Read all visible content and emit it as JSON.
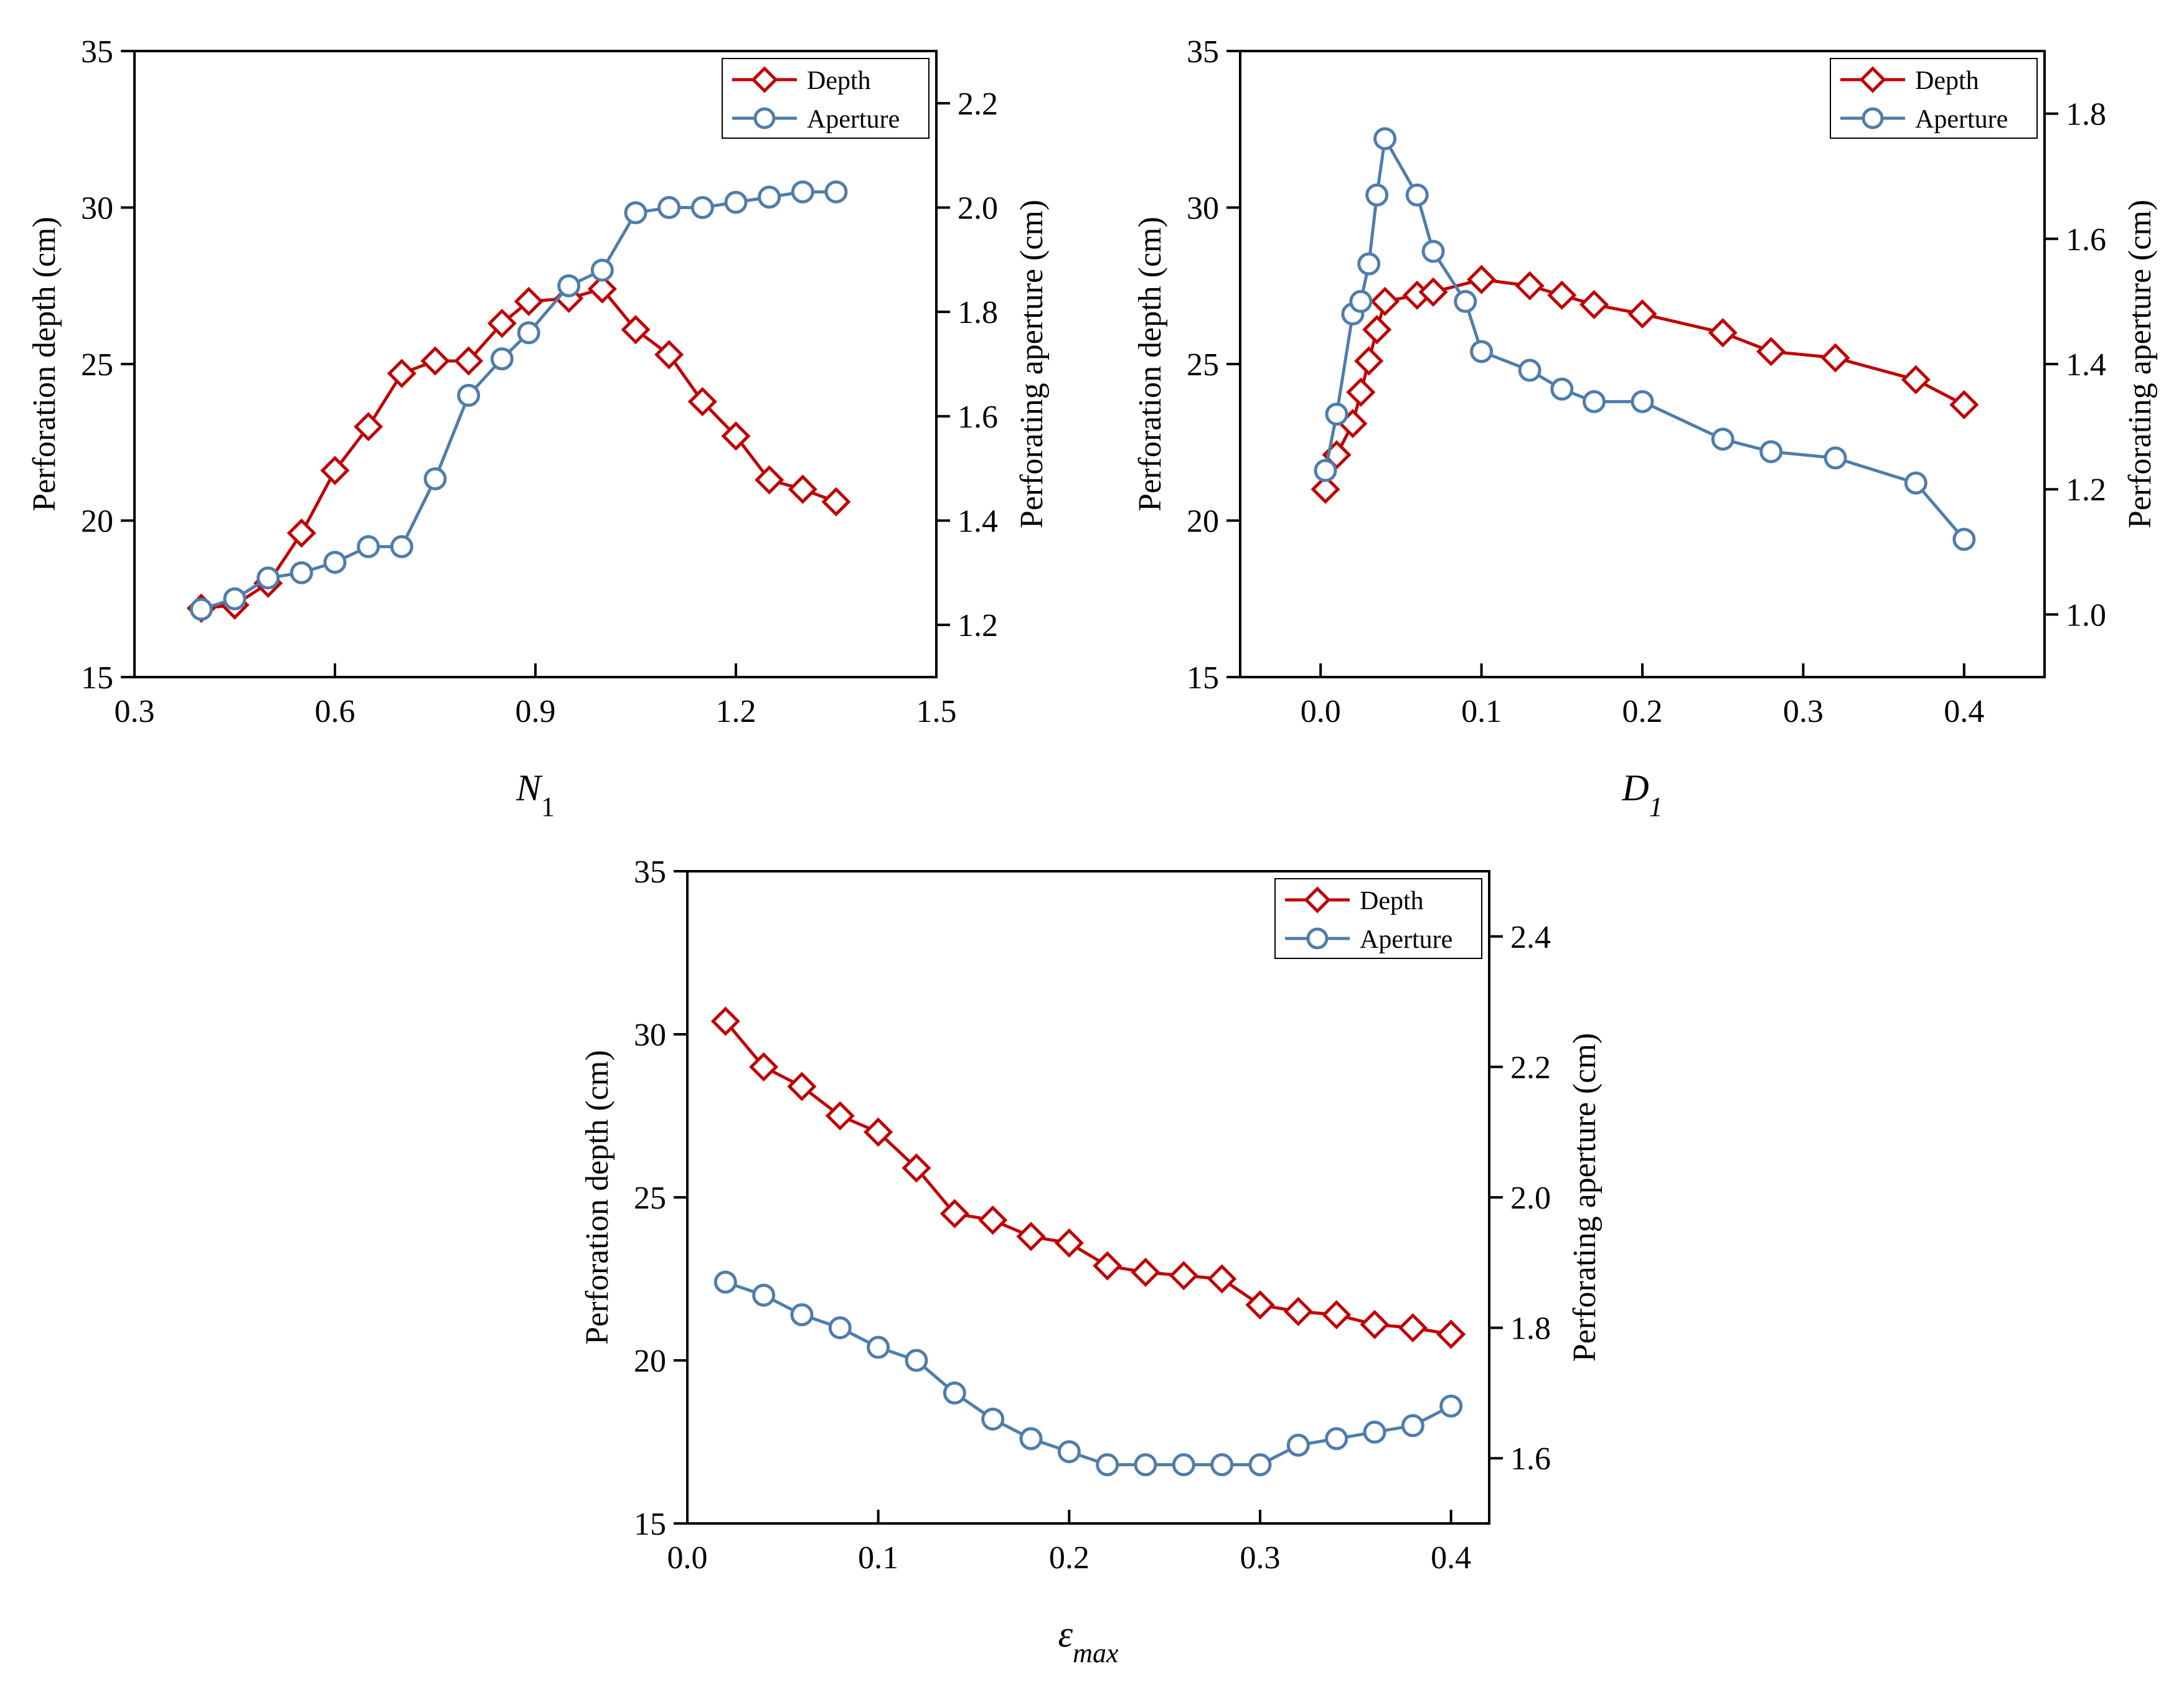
{
  "figure": {
    "title": ""
  },
  "chart_data": [
    {
      "type": "line",
      "id": "n1",
      "xlabel": {
        "symbol": "N",
        "sub": "1",
        "sub_italic": false
      },
      "x_ticks": [
        "0.3",
        "0.6",
        "0.9",
        "1.2",
        "1.5"
      ],
      "xlim": [
        0.3,
        1.5
      ],
      "ylabel_left": "Perforation depth (cm)",
      "ylim_left": [
        15,
        35
      ],
      "y_ticks_left": [
        "15",
        "20",
        "25",
        "30",
        "35"
      ],
      "ylabel_right": "Perforating aperture (cm)",
      "ylim_right": [
        1.1,
        2.3
      ],
      "y_ticks_right": [
        "1.2",
        "1.4",
        "1.6",
        "1.8",
        "2.0",
        "2.2"
      ],
      "legend": [
        "Depth",
        "Aperture"
      ],
      "series": [
        {
          "name": "Depth",
          "axis": "left",
          "marker": "diamond",
          "color": "#c00000",
          "x": [
            0.4,
            0.45,
            0.5,
            0.55,
            0.6,
            0.65,
            0.7,
            0.75,
            0.8,
            0.85,
            0.89,
            0.95,
            1.0,
            1.05,
            1.1,
            1.15,
            1.2,
            1.25,
            1.3,
            1.35
          ],
          "y": [
            17.2,
            17.3,
            18.0,
            19.6,
            21.6,
            23.0,
            24.7,
            25.1,
            25.1,
            26.3,
            27.0,
            27.1,
            27.4,
            26.1,
            25.3,
            23.8,
            22.7,
            21.3,
            21.0,
            20.6
          ]
        },
        {
          "name": "Aperture",
          "axis": "right",
          "marker": "circle",
          "color": "#4f7dab",
          "x": [
            0.4,
            0.45,
            0.5,
            0.55,
            0.6,
            0.65,
            0.7,
            0.75,
            0.8,
            0.85,
            0.89,
            0.95,
            1.0,
            1.05,
            1.1,
            1.15,
            1.2,
            1.25,
            1.3,
            1.35
          ],
          "y": [
            1.23,
            1.25,
            1.29,
            1.3,
            1.32,
            1.35,
            1.35,
            1.48,
            1.64,
            1.71,
            1.76,
            1.85,
            1.88,
            1.99,
            2.0,
            2.0,
            2.01,
            2.02,
            2.03,
            2.03
          ]
        }
      ]
    },
    {
      "type": "line",
      "id": "d1",
      "xlabel": {
        "symbol": "D",
        "sub": "1",
        "sub_italic": true
      },
      "x_ticks": [
        "0.0",
        "0.1",
        "0.2",
        "0.3",
        "0.4"
      ],
      "xlim": [
        -0.05,
        0.45
      ],
      "ylabel_left": "Perforation depth (cm)",
      "ylim_left": [
        15,
        35
      ],
      "y_ticks_left": [
        "15",
        "20",
        "25",
        "30",
        "35"
      ],
      "ylabel_right": "Perforating aperture (cm)",
      "ylim_right": [
        0.9,
        1.9
      ],
      "y_ticks_right": [
        "1.0",
        "1.2",
        "1.4",
        "1.6",
        "1.8"
      ],
      "legend": [
        "Depth",
        "Aperture"
      ],
      "series": [
        {
          "name": "Depth",
          "axis": "left",
          "marker": "diamond",
          "color": "#c00000",
          "x": [
            0.003,
            0.01,
            0.02,
            0.025,
            0.03,
            0.035,
            0.04,
            0.06,
            0.07,
            0.1,
            0.13,
            0.15,
            0.17,
            0.2,
            0.25,
            0.28,
            0.32,
            0.37,
            0.4
          ],
          "y": [
            21.0,
            22.1,
            23.1,
            24.1,
            25.1,
            26.1,
            27.0,
            27.2,
            27.3,
            27.7,
            27.5,
            27.2,
            26.9,
            26.6,
            26.0,
            25.4,
            25.2,
            24.5,
            23.7
          ]
        },
        {
          "name": "Aperture",
          "axis": "right",
          "marker": "circle",
          "color": "#4f7dab",
          "x": [
            0.003,
            0.01,
            0.02,
            0.025,
            0.03,
            0.035,
            0.04,
            0.06,
            0.07,
            0.09,
            0.1,
            0.13,
            0.15,
            0.17,
            0.2,
            0.25,
            0.28,
            0.32,
            0.37,
            0.4
          ],
          "y": [
            1.23,
            1.32,
            1.48,
            1.5,
            1.56,
            1.67,
            1.76,
            1.67,
            1.58,
            1.5,
            1.42,
            1.39,
            1.36,
            1.34,
            1.34,
            1.28,
            1.26,
            1.25,
            1.21,
            1.12
          ]
        }
      ]
    },
    {
      "type": "line",
      "id": "emax",
      "xlabel": {
        "symbol": "ε",
        "sub": "max",
        "sub_italic": true
      },
      "x_ticks": [
        "0.0",
        "0.1",
        "0.2",
        "0.3",
        "0.4"
      ],
      "xlim": [
        0.0,
        0.42
      ],
      "ylabel_left": "Perforation depth (cm)",
      "ylim_left": [
        15,
        35
      ],
      "y_ticks_left": [
        "15",
        "20",
        "25",
        "30",
        "35"
      ],
      "ylabel_right": "Perforating aperture (cm)",
      "ylim_right": [
        1.5,
        2.5
      ],
      "y_ticks_right": [
        "1.6",
        "1.8",
        "2.0",
        "2.2",
        "2.4"
      ],
      "legend": [
        "Depth",
        "Aperture"
      ],
      "series": [
        {
          "name": "Depth",
          "axis": "left",
          "marker": "diamond",
          "color": "#c00000",
          "x": [
            0.02,
            0.04,
            0.06,
            0.08,
            0.1,
            0.12,
            0.14,
            0.16,
            0.18,
            0.2,
            0.22,
            0.24,
            0.26,
            0.28,
            0.3,
            0.32,
            0.34,
            0.36,
            0.38,
            0.4
          ],
          "y": [
            30.4,
            29.0,
            28.4,
            27.5,
            27.0,
            25.9,
            24.5,
            24.3,
            23.8,
            23.6,
            22.9,
            22.7,
            22.6,
            22.5,
            21.7,
            21.5,
            21.4,
            21.1,
            21.0,
            20.8
          ]
        },
        {
          "name": "Aperture",
          "axis": "right",
          "marker": "circle",
          "color": "#4f7dab",
          "x": [
            0.02,
            0.04,
            0.06,
            0.08,
            0.1,
            0.12,
            0.14,
            0.16,
            0.18,
            0.2,
            0.22,
            0.24,
            0.26,
            0.28,
            0.3,
            0.32,
            0.34,
            0.36,
            0.38,
            0.4
          ],
          "y": [
            1.87,
            1.85,
            1.82,
            1.8,
            1.77,
            1.75,
            1.7,
            1.66,
            1.63,
            1.61,
            1.59,
            1.59,
            1.59,
            1.59,
            1.59,
            1.62,
            1.63,
            1.64,
            1.65,
            1.68
          ]
        }
      ]
    }
  ]
}
